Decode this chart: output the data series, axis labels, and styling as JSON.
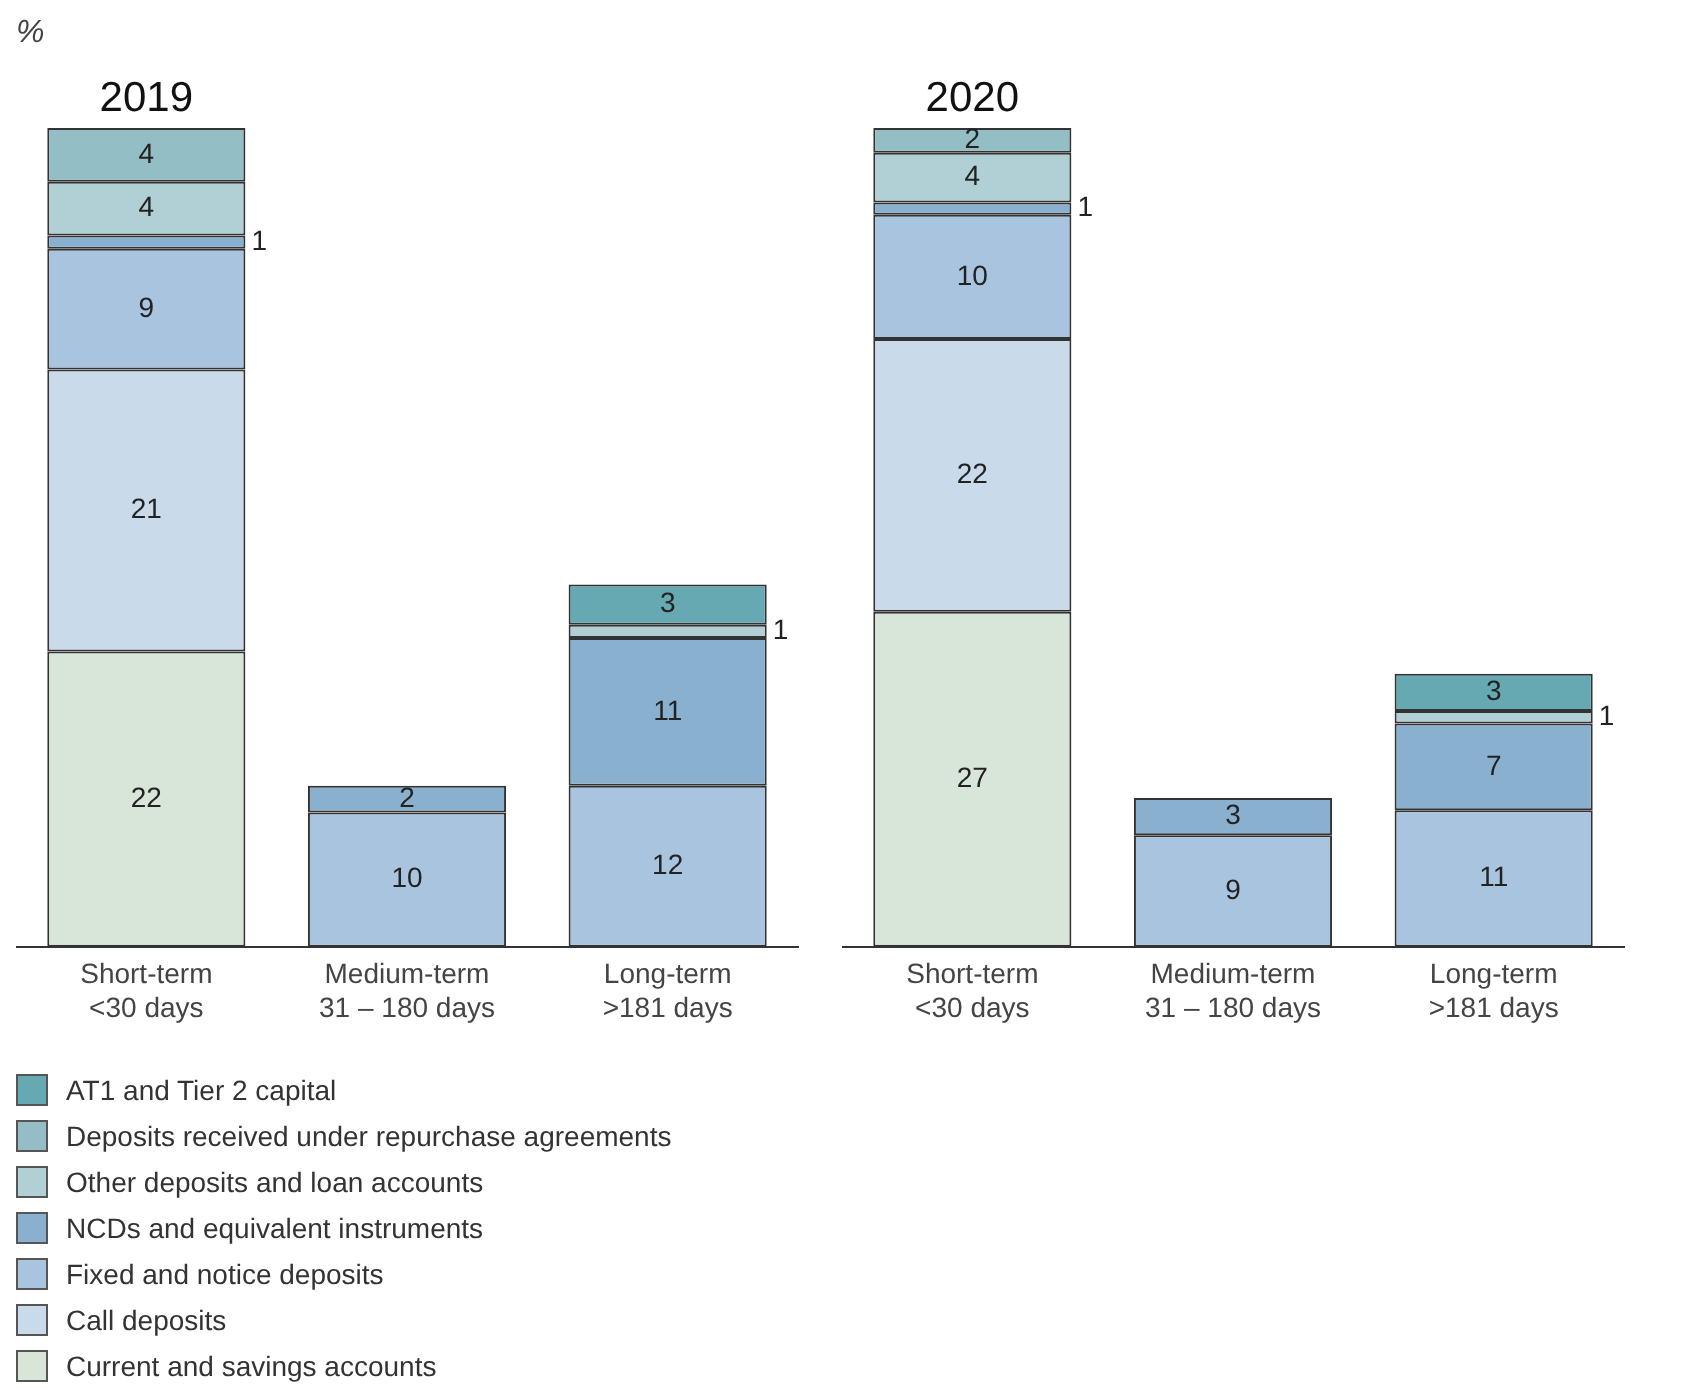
{
  "chart_data": [
    {
      "type": "bar",
      "title": "2019",
      "ylabel": "%",
      "categories": [
        "Short-term\n<30 days",
        "Medium-term\n31 – 180 days",
        "Long-term\n>181 days"
      ],
      "stacked": true,
      "data_labels": true,
      "tick_labels": "x",
      "legend": "bottom",
      "grid": false,
      "series": [
        {
          "name": "Current and savings accounts",
          "color": "#d8e6da",
          "values": [
            22,
            null,
            null
          ]
        },
        {
          "name": "Call deposits",
          "color": "#c9dbeb",
          "values": [
            21,
            null,
            null
          ]
        },
        {
          "name": "Fixed and notice deposits",
          "color": "#a9c4de",
          "values": [
            9,
            10,
            12
          ]
        },
        {
          "name": "NCDs and equivalent instruments",
          "color": "#8ab0d0",
          "values": [
            1,
            2,
            11
          ]
        },
        {
          "name": "Other deposits and loan accounts",
          "color": "#b0d0d6",
          "values": [
            4,
            null,
            1
          ]
        },
        {
          "name": "Deposits received under repurchase agreements",
          "color": "#93bec6",
          "values": [
            4,
            null,
            null
          ]
        },
        {
          "name": "AT1 and Tier 2 capital",
          "color": "#67a9b3",
          "values": [
            null,
            null,
            3
          ]
        }
      ]
    },
    {
      "type": "bar",
      "title": "2020",
      "categories": [
        "Short-term\n<30 days",
        "Medium-term\n31 – 180 days",
        "Long-term\n>181 days"
      ],
      "stacked": true,
      "data_labels": true,
      "tick_labels": "x",
      "grid": false,
      "series": [
        {
          "color": "#d8e6da",
          "values": [
            27,
            null,
            null
          ]
        },
        {
          "color": "#c9dbeb",
          "values": [
            22,
            null,
            null
          ]
        },
        {
          "color": "#a9c4de",
          "values": [
            10,
            9,
            11
          ]
        },
        {
          "color": "#8ab0d0",
          "values": [
            1,
            3,
            7
          ]
        },
        {
          "color": "#b0d0d6",
          "values": [
            4,
            null,
            1
          ]
        },
        {
          "color": "#93bec6",
          "values": [
            2,
            null,
            null
          ]
        },
        {
          "color": "#67a9b3",
          "values": [
            null,
            null,
            3
          ]
        }
      ]
    }
  ]
}
